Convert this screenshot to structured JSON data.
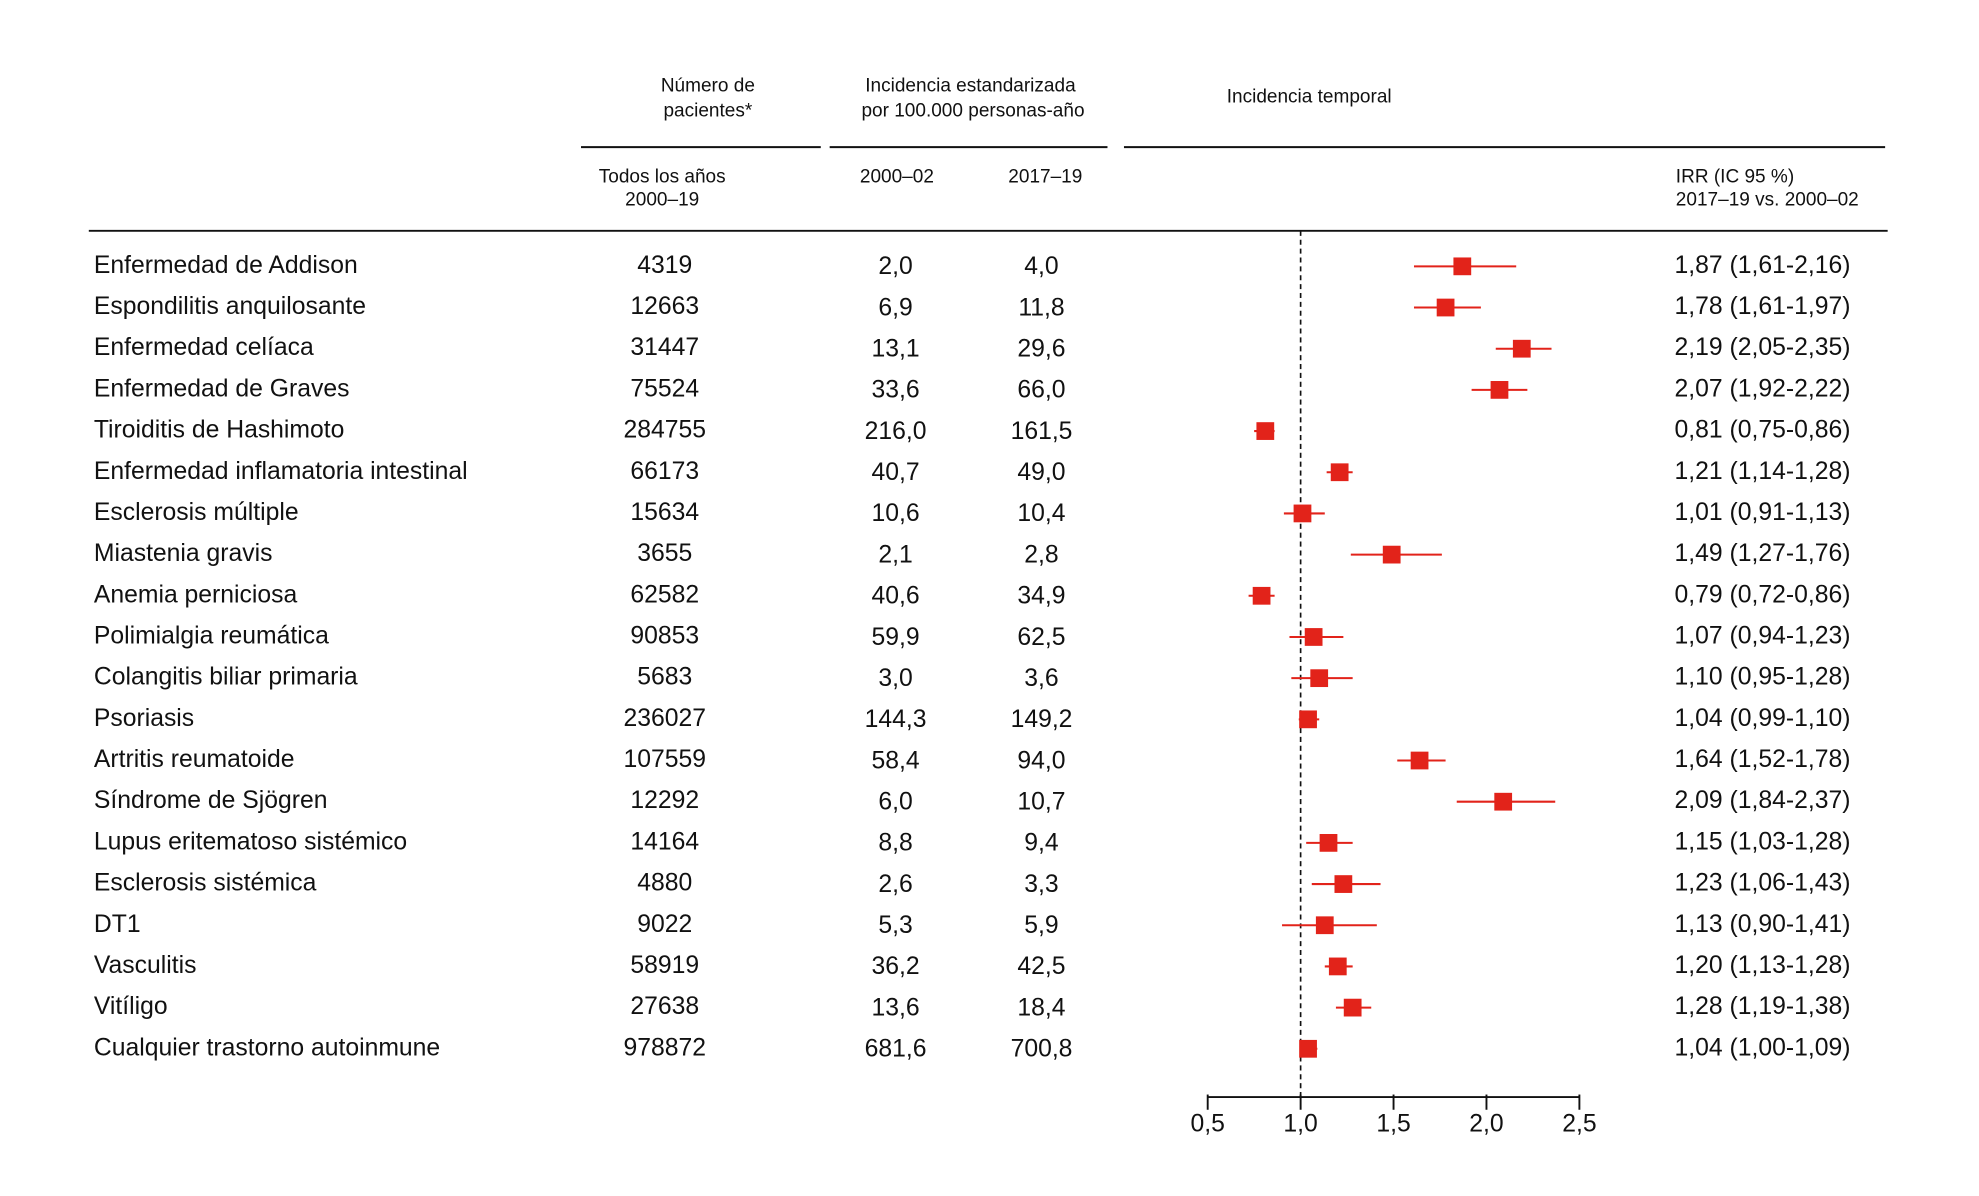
{
  "chart_data": {
    "type": "forest",
    "headers": {
      "patients": [
        "Número de",
        "pacientes*"
      ],
      "incidence": [
        "Incidencia estandarizada",
        "por 100.000 personas-año"
      ],
      "temporal": "Incidencia temporal",
      "all_years": [
        "Todos los años",
        "2000–19"
      ],
      "period1": "2000–02",
      "period2": "2017–19",
      "irr": [
        "IRR (IC 95 %)",
        "2017–19 vs. 2000–02"
      ]
    },
    "categories": [
      "Enfermedad de Addison",
      "Espondilitis anquilosante",
      "Enfermedad celíaca",
      "Enfermedad de Graves",
      "Tiroiditis de Hashimoto",
      "Enfermedad inflamatoria intestinal",
      "Esclerosis múltiple",
      "Miastenia gravis",
      "Anemia perniciosa",
      "Polimialgia reumática",
      "Colangitis biliar primaria",
      "Psoriasis",
      "Artritis reumatoide",
      "Síndrome de Sjögren",
      "Lupus eritematoso sistémico",
      "Esclerosis sistémica",
      "DT1",
      "Vasculitis",
      "Vitíligo",
      "Cualquier trastorno autoinmune"
    ],
    "patients": [
      4319,
      12663,
      31447,
      75524,
      284755,
      66173,
      15634,
      3655,
      62582,
      90853,
      5683,
      236027,
      107559,
      12292,
      14164,
      4880,
      9022,
      58919,
      27638,
      978872
    ],
    "incidence_2000_02": [
      "2,0",
      "6,9",
      "13,1",
      "33,6",
      "216,0",
      "40,7",
      "10,6",
      "2,1",
      "40,6",
      "59,9",
      "3,0",
      "144,3",
      "58,4",
      "6,0",
      "8,8",
      "2,6",
      "5,3",
      "36,2",
      "13,6",
      "681,6"
    ],
    "incidence_2017_19": [
      "4,0",
      "11,8",
      "29,6",
      "66,0",
      "161,5",
      "49,0",
      "10,4",
      "2,8",
      "34,9",
      "62,5",
      "3,6",
      "149,2",
      "94,0",
      "10,7",
      "9,4",
      "3,3",
      "5,9",
      "42,5",
      "18,4",
      "700,8"
    ],
    "values": [
      1.87,
      1.78,
      2.19,
      2.07,
      0.81,
      1.21,
      1.01,
      1.49,
      0.79,
      1.07,
      1.1,
      1.04,
      1.64,
      2.09,
      1.15,
      1.23,
      1.13,
      1.2,
      1.28,
      1.04
    ],
    "lower": [
      1.61,
      1.61,
      2.05,
      1.92,
      0.75,
      1.14,
      0.91,
      1.27,
      0.72,
      0.94,
      0.95,
      0.99,
      1.52,
      1.84,
      1.03,
      1.06,
      0.9,
      1.13,
      1.19,
      1.0
    ],
    "upper": [
      2.16,
      1.97,
      2.35,
      2.22,
      0.86,
      1.28,
      1.13,
      1.76,
      0.86,
      1.23,
      1.28,
      1.1,
      1.78,
      2.37,
      1.28,
      1.43,
      1.41,
      1.28,
      1.38,
      1.09
    ],
    "value_labels": [
      "1,87 (1,61-2,16)",
      "1,78 (1,61-1,97)",
      "2,19 (2,05-2,35)",
      "2,07 (1,92-2,22)",
      "0,81 (0,75-0,86)",
      "1,21 (1,14-1,28)",
      "1,01 (0,91-1,13)",
      "1,49 (1,27-1,76)",
      "0,79 (0,72-0,86)",
      "1,07 (0,94-1,23)",
      "1,10 (0,95-1,28)",
      "1,04 (0,99-1,10)",
      "1,64 (1,52-1,78)",
      "2,09 (1,84-2,37)",
      "1,15 (1,03-1,28)",
      "1,23 (1,06-1,43)",
      "1,13 (0,90-1,41)",
      "1,20 (1,13-1,28)",
      "1,28 (1,19-1,38)",
      "1,04 (1,00-1,09)"
    ],
    "color": "#e2231a",
    "xlim": [
      0.5,
      2.5
    ],
    "xticks": [
      {
        "value": 0.5,
        "label": "0,5"
      },
      {
        "value": 1.0,
        "label": "1,0"
      },
      {
        "value": 1.5,
        "label": "1,5"
      },
      {
        "value": 2.0,
        "label": "2,0"
      },
      {
        "value": 2.5,
        "label": "2,5"
      }
    ],
    "reference_line": 1
  }
}
